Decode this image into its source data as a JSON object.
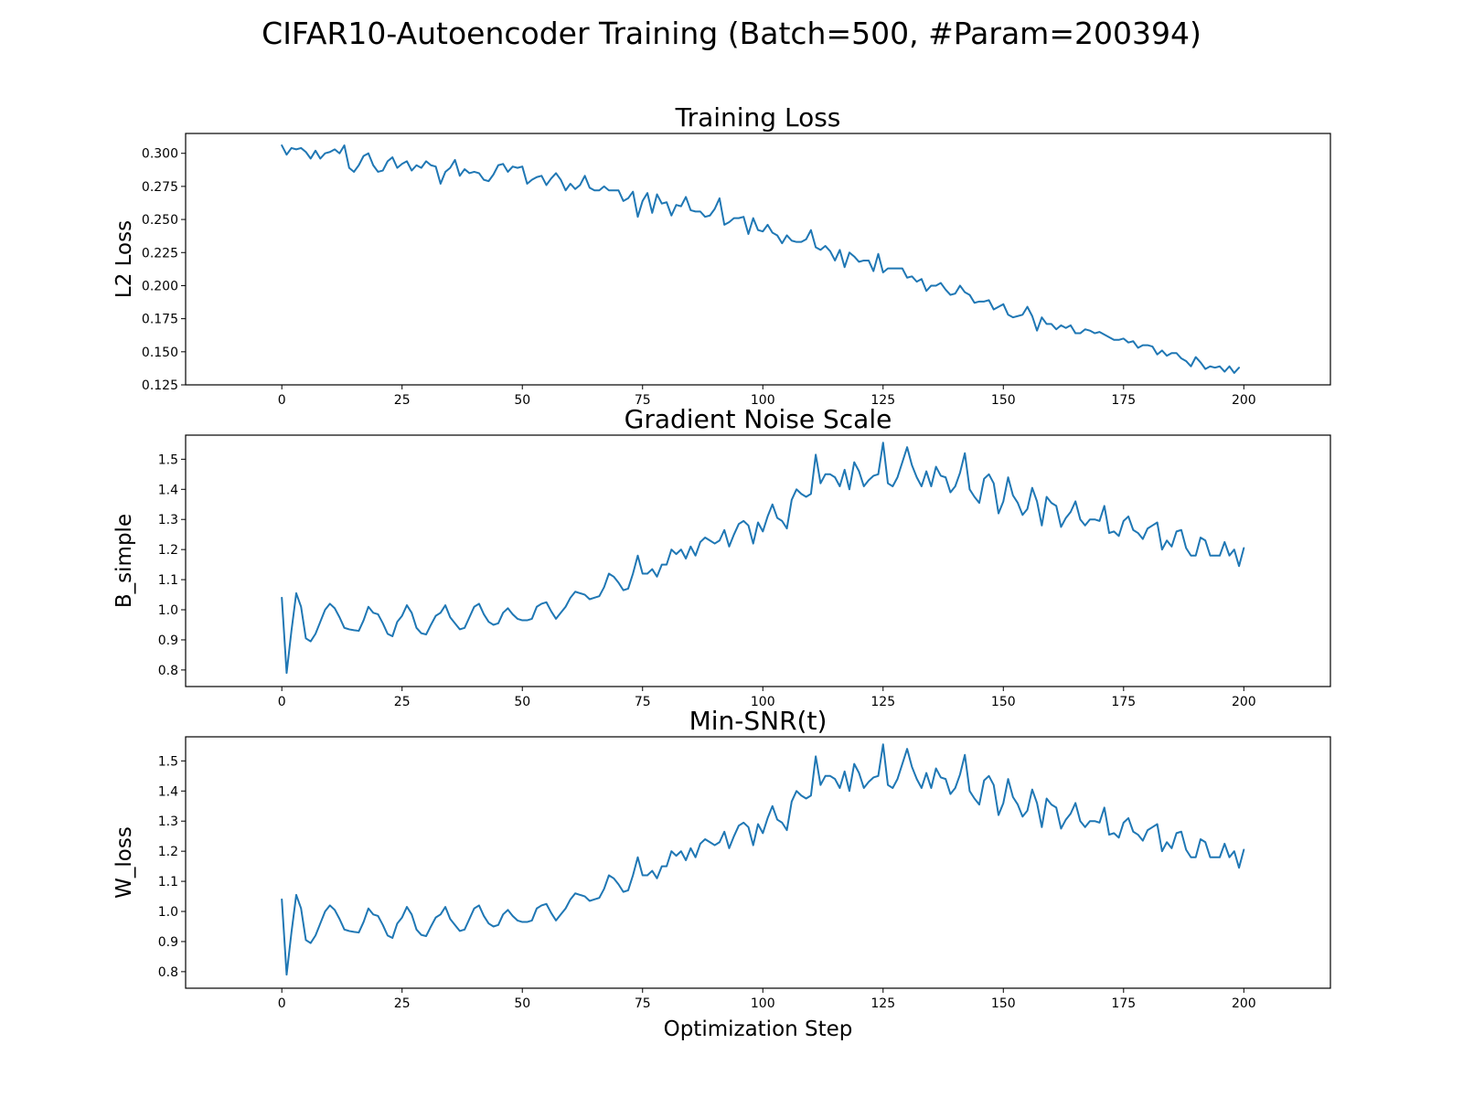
{
  "suptitle": "CIFAR10-Autoencoder Training (Batch=500, #Param=200394)",
  "colors": {
    "line": "#1f77b4"
  },
  "chart_data": [
    {
      "type": "line",
      "title": "Training Loss",
      "xlabel": "",
      "ylabel": "L2 Loss",
      "xlim": [
        -20,
        218
      ],
      "ylim": [
        0.125,
        0.315
      ],
      "xticks": [
        0,
        25,
        50,
        75,
        100,
        125,
        150,
        175,
        200
      ],
      "yticks": [
        0.125,
        0.15,
        0.175,
        0.2,
        0.225,
        0.25,
        0.275,
        0.3
      ],
      "ytick_labels": [
        "0.125",
        "0.150",
        "0.175",
        "0.200",
        "0.225",
        "0.250",
        "0.275",
        "0.300"
      ],
      "x_start": 0,
      "series": [
        {
          "values": [
            0.306,
            0.299,
            0.304,
            0.303,
            0.304,
            0.301,
            0.296,
            0.302,
            0.296,
            0.3,
            0.301,
            0.303,
            0.3,
            0.306,
            0.289,
            0.286,
            0.291,
            0.298,
            0.3,
            0.291,
            0.286,
            0.287,
            0.294,
            0.297,
            0.289,
            0.292,
            0.294,
            0.287,
            0.291,
            0.289,
            0.294,
            0.291,
            0.29,
            0.277,
            0.286,
            0.289,
            0.295,
            0.283,
            0.288,
            0.285,
            0.286,
            0.285,
            0.28,
            0.279,
            0.284,
            0.291,
            0.292,
            0.286,
            0.29,
            0.289,
            0.29,
            0.277,
            0.28,
            0.282,
            0.283,
            0.276,
            0.281,
            0.285,
            0.28,
            0.272,
            0.277,
            0.273,
            0.276,
            0.283,
            0.274,
            0.272,
            0.272,
            0.275,
            0.272,
            0.272,
            0.272,
            0.264,
            0.266,
            0.271,
            0.252,
            0.264,
            0.27,
            0.255,
            0.269,
            0.262,
            0.263,
            0.253,
            0.261,
            0.26,
            0.267,
            0.257,
            0.256,
            0.256,
            0.252,
            0.253,
            0.258,
            0.266,
            0.246,
            0.248,
            0.251,
            0.251,
            0.252,
            0.239,
            0.251,
            0.242,
            0.241,
            0.246,
            0.24,
            0.238,
            0.232,
            0.238,
            0.234,
            0.233,
            0.233,
            0.235,
            0.242,
            0.229,
            0.227,
            0.23,
            0.226,
            0.219,
            0.227,
            0.214,
            0.225,
            0.222,
            0.218,
            0.219,
            0.219,
            0.211,
            0.224,
            0.21,
            0.213,
            0.213,
            0.213,
            0.213,
            0.206,
            0.207,
            0.203,
            0.205,
            0.196,
            0.2,
            0.2,
            0.202,
            0.197,
            0.193,
            0.194,
            0.2,
            0.195,
            0.193,
            0.187,
            0.188,
            0.188,
            0.189,
            0.182,
            0.184,
            0.186,
            0.178,
            0.176,
            0.177,
            0.178,
            0.184,
            0.177,
            0.166,
            0.176,
            0.171,
            0.171,
            0.167,
            0.17,
            0.168,
            0.17,
            0.164,
            0.164,
            0.167,
            0.166,
            0.164,
            0.165,
            0.163,
            0.161,
            0.159,
            0.159,
            0.16,
            0.157,
            0.158,
            0.153,
            0.155,
            0.155,
            0.154,
            0.148,
            0.151,
            0.147,
            0.149,
            0.149,
            0.145,
            0.143,
            0.139,
            0.146,
            0.142,
            0.137,
            0.139,
            0.138,
            0.139,
            0.135,
            0.139,
            0.134,
            0.138
          ]
        }
      ]
    },
    {
      "type": "line",
      "title": "Gradient Noise Scale",
      "xlabel": "",
      "ylabel": "B_simple",
      "xlim": [
        -20,
        218
      ],
      "ylim": [
        0.745,
        1.58
      ],
      "xticks": [
        0,
        25,
        50,
        75,
        100,
        125,
        150,
        175,
        200
      ],
      "yticks": [
        0.8,
        0.9,
        1.0,
        1.1,
        1.2,
        1.3,
        1.4,
        1.5
      ],
      "ytick_labels": [
        "0.8",
        "0.9",
        "1.0",
        "1.1",
        "1.2",
        "1.3",
        "1.4",
        "1.5"
      ],
      "x_start": 0,
      "series": [
        {
          "values": [
            1.04,
            0.79,
            0.93,
            1.055,
            1.01,
            0.905,
            0.895,
            0.92,
            0.96,
            1.0,
            1.02,
            1.005,
            0.975,
            0.94,
            0.935,
            0.932,
            0.93,
            0.965,
            1.01,
            0.99,
            0.985,
            0.955,
            0.92,
            0.912,
            0.96,
            0.98,
            1.015,
            0.99,
            0.94,
            0.922,
            0.918,
            0.95,
            0.98,
            0.99,
            1.015,
            0.975,
            0.955,
            0.935,
            0.94,
            0.975,
            1.01,
            1.02,
            0.985,
            0.96,
            0.95,
            0.955,
            0.99,
            1.005,
            0.985,
            0.97,
            0.965,
            0.965,
            0.97,
            1.01,
            1.02,
            1.025,
            0.995,
            0.97,
            0.99,
            1.01,
            1.04,
            1.06,
            1.055,
            1.05,
            1.035,
            1.04,
            1.045,
            1.075,
            1.12,
            1.11,
            1.09,
            1.065,
            1.07,
            1.12,
            1.18,
            1.12,
            1.12,
            1.135,
            1.11,
            1.15,
            1.15,
            1.2,
            1.185,
            1.2,
            1.17,
            1.21,
            1.18,
            1.225,
            1.24,
            1.23,
            1.22,
            1.23,
            1.265,
            1.21,
            1.25,
            1.285,
            1.295,
            1.28,
            1.22,
            1.29,
            1.26,
            1.31,
            1.35,
            1.305,
            1.295,
            1.27,
            1.365,
            1.4,
            1.385,
            1.375,
            1.385,
            1.515,
            1.42,
            1.45,
            1.45,
            1.44,
            1.41,
            1.465,
            1.4,
            1.49,
            1.46,
            1.41,
            1.43,
            1.445,
            1.45,
            1.555,
            1.42,
            1.41,
            1.44,
            1.49,
            1.54,
            1.48,
            1.44,
            1.41,
            1.46,
            1.41,
            1.475,
            1.445,
            1.44,
            1.39,
            1.41,
            1.455,
            1.52,
            1.4,
            1.375,
            1.355,
            1.435,
            1.45,
            1.42,
            1.32,
            1.36,
            1.44,
            1.38,
            1.355,
            1.315,
            1.335,
            1.405,
            1.36,
            1.28,
            1.375,
            1.355,
            1.345,
            1.275,
            1.305,
            1.325,
            1.36,
            1.3,
            1.28,
            1.3,
            1.3,
            1.295,
            1.345,
            1.255,
            1.26,
            1.245,
            1.295,
            1.31,
            1.265,
            1.255,
            1.235,
            1.27,
            1.28,
            1.29,
            1.2,
            1.23,
            1.21,
            1.26,
            1.265,
            1.205,
            1.18,
            1.18,
            1.24,
            1.23,
            1.18,
            1.18,
            1.18,
            1.225,
            1.18,
            1.2,
            1.145,
            1.205
          ]
        }
      ]
    },
    {
      "type": "line",
      "title": "Min-SNR(t)",
      "xlabel": "Optimization Step",
      "ylabel": "W_loss",
      "xlim": [
        -20,
        218
      ],
      "ylim": [
        0.745,
        1.58
      ],
      "xticks": [
        0,
        25,
        50,
        75,
        100,
        125,
        150,
        175,
        200
      ],
      "yticks": [
        0.8,
        0.9,
        1.0,
        1.1,
        1.2,
        1.3,
        1.4,
        1.5
      ],
      "ytick_labels": [
        "0.8",
        "0.9",
        "1.0",
        "1.1",
        "1.2",
        "1.3",
        "1.4",
        "1.5"
      ],
      "x_start": 0,
      "series": [
        {
          "values": [
            1.04,
            0.79,
            0.93,
            1.055,
            1.01,
            0.905,
            0.895,
            0.92,
            0.96,
            1.0,
            1.02,
            1.005,
            0.975,
            0.94,
            0.935,
            0.932,
            0.93,
            0.965,
            1.01,
            0.99,
            0.985,
            0.955,
            0.92,
            0.912,
            0.96,
            0.98,
            1.015,
            0.99,
            0.94,
            0.922,
            0.918,
            0.95,
            0.98,
            0.99,
            1.015,
            0.975,
            0.955,
            0.935,
            0.94,
            0.975,
            1.01,
            1.02,
            0.985,
            0.96,
            0.95,
            0.955,
            0.99,
            1.005,
            0.985,
            0.97,
            0.965,
            0.965,
            0.97,
            1.01,
            1.02,
            1.025,
            0.995,
            0.97,
            0.99,
            1.01,
            1.04,
            1.06,
            1.055,
            1.05,
            1.035,
            1.04,
            1.045,
            1.075,
            1.12,
            1.11,
            1.09,
            1.065,
            1.07,
            1.12,
            1.18,
            1.12,
            1.12,
            1.135,
            1.11,
            1.15,
            1.15,
            1.2,
            1.185,
            1.2,
            1.17,
            1.21,
            1.18,
            1.225,
            1.24,
            1.23,
            1.22,
            1.23,
            1.265,
            1.21,
            1.25,
            1.285,
            1.295,
            1.28,
            1.22,
            1.29,
            1.26,
            1.31,
            1.35,
            1.305,
            1.295,
            1.27,
            1.365,
            1.4,
            1.385,
            1.375,
            1.385,
            1.515,
            1.42,
            1.45,
            1.45,
            1.44,
            1.41,
            1.465,
            1.4,
            1.49,
            1.46,
            1.41,
            1.43,
            1.445,
            1.45,
            1.555,
            1.42,
            1.41,
            1.44,
            1.49,
            1.54,
            1.48,
            1.44,
            1.41,
            1.46,
            1.41,
            1.475,
            1.445,
            1.44,
            1.39,
            1.41,
            1.455,
            1.52,
            1.4,
            1.375,
            1.355,
            1.435,
            1.45,
            1.42,
            1.32,
            1.36,
            1.44,
            1.38,
            1.355,
            1.315,
            1.335,
            1.405,
            1.36,
            1.28,
            1.375,
            1.355,
            1.345,
            1.275,
            1.305,
            1.325,
            1.36,
            1.3,
            1.28,
            1.3,
            1.3,
            1.295,
            1.345,
            1.255,
            1.26,
            1.245,
            1.295,
            1.31,
            1.265,
            1.255,
            1.235,
            1.27,
            1.28,
            1.29,
            1.2,
            1.23,
            1.21,
            1.26,
            1.265,
            1.205,
            1.18,
            1.18,
            1.24,
            1.23,
            1.18,
            1.18,
            1.18,
            1.225,
            1.18,
            1.2,
            1.145,
            1.205
          ]
        }
      ]
    }
  ]
}
